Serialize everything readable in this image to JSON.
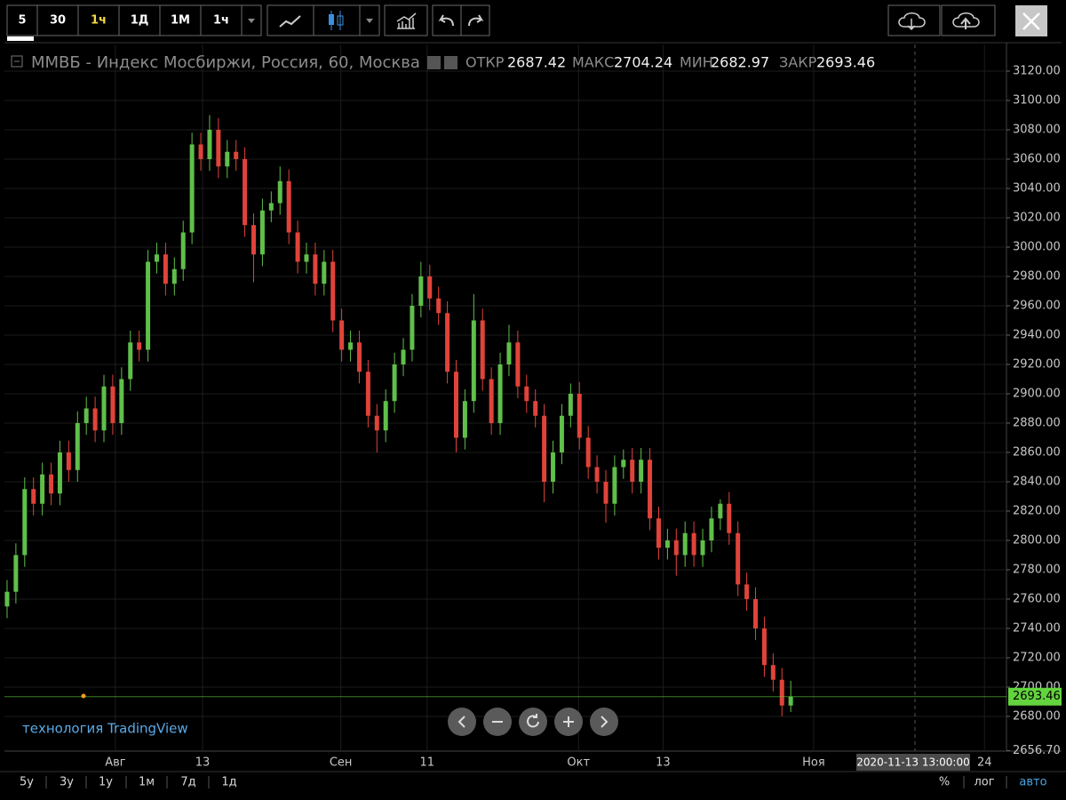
{
  "toolbar": {
    "intervals": [
      "5",
      "30",
      "1ч",
      "1Д",
      "1М",
      "1ч"
    ]
  },
  "chart_data": {
    "type": "candlestick",
    "title": "ММВБ - Индекс Мосбиржи, Россия, 60, Москва",
    "ohlc_labels": [
      "ОТКР",
      "МАКС",
      "МИН",
      "ЗАКР"
    ],
    "open": [
      2755,
      2765,
      2790,
      2835,
      2825,
      2845,
      2832,
      2860,
      2848,
      2880,
      2890,
      2875,
      2905,
      2880,
      2910,
      2935,
      2930,
      2990,
      2995,
      2975,
      2985,
      3010,
      3070,
      3060,
      3080,
      3055,
      3065,
      3060,
      3015,
      2995,
      3025,
      3030,
      3045,
      3010,
      2990,
      2995,
      2975,
      2990,
      2950,
      2930,
      2935,
      2915,
      2885,
      2875,
      2895,
      2920,
      2930,
      2960,
      2980,
      2965,
      2955,
      2915,
      2870,
      2895,
      2950,
      2910,
      2880,
      2920,
      2935,
      2905,
      2895,
      2885,
      2840,
      2860,
      2885,
      2900,
      2870,
      2850,
      2840,
      2825,
      2850,
      2855,
      2840,
      2855,
      2815,
      2795,
      2800,
      2790,
      2805,
      2790,
      2800,
      2815,
      2825,
      2805,
      2770,
      2760,
      2740,
      2715,
      2705,
      2687.42
    ],
    "high": [
      2773,
      2798,
      2843,
      2843,
      2853,
      2853,
      2868,
      2868,
      2888,
      2898,
      2898,
      2913,
      2913,
      2918,
      2943,
      2943,
      2998,
      3003,
      3003,
      2993,
      3018,
      3078,
      3078,
      3090,
      3088,
      3073,
      3073,
      3068,
      3023,
      3033,
      3038,
      3055,
      3053,
      3018,
      3003,
      3003,
      2998,
      2998,
      2958,
      2943,
      2943,
      2923,
      2893,
      2903,
      2928,
      2938,
      2968,
      2990,
      2988,
      2973,
      2963,
      2923,
      2903,
      2968,
      2958,
      2918,
      2928,
      2947,
      2943,
      2913,
      2903,
      2893,
      2868,
      2893,
      2907,
      2908,
      2878,
      2858,
      2848,
      2858,
      2862,
      2863,
      2863,
      2863,
      2823,
      2808,
      2808,
      2813,
      2813,
      2808,
      2823,
      2828,
      2833,
      2813,
      2778,
      2768,
      2748,
      2723,
      2713,
      2704.24
    ],
    "low": [
      2747,
      2757,
      2782,
      2817,
      2817,
      2824,
      2824,
      2840,
      2840,
      2872,
      2867,
      2867,
      2872,
      2872,
      2902,
      2922,
      2922,
      2982,
      2967,
      2967,
      2977,
      3002,
      3052,
      3052,
      3047,
      3047,
      3052,
      3007,
      2976,
      2987,
      3017,
      3022,
      3002,
      2982,
      2982,
      2967,
      2967,
      2942,
      2922,
      2922,
      2907,
      2877,
      2860,
      2867,
      2887,
      2912,
      2922,
      2952,
      2957,
      2947,
      2907,
      2860,
      2862,
      2887,
      2902,
      2872,
      2872,
      2912,
      2897,
      2887,
      2877,
      2826,
      2832,
      2852,
      2877,
      2862,
      2842,
      2832,
      2812,
      2817,
      2842,
      2832,
      2832,
      2807,
      2787,
      2787,
      2776,
      2782,
      2782,
      2782,
      2792,
      2807,
      2797,
      2762,
      2752,
      2732,
      2707,
      2697,
      2680,
      2682.97
    ],
    "close": [
      2765,
      2790,
      2835,
      2825,
      2845,
      2832,
      2860,
      2848,
      2880,
      2890,
      2875,
      2905,
      2880,
      2910,
      2935,
      2930,
      2990,
      2995,
      2975,
      2985,
      3010,
      3070,
      3060,
      3080,
      3055,
      3065,
      3060,
      3015,
      2995,
      3025,
      3030,
      3045,
      3010,
      2990,
      2995,
      2975,
      2990,
      2950,
      2930,
      2935,
      2915,
      2885,
      2875,
      2895,
      2920,
      2930,
      2960,
      2980,
      2965,
      2955,
      2915,
      2870,
      2895,
      2950,
      2910,
      2880,
      2920,
      2935,
      2905,
      2895,
      2885,
      2840,
      2860,
      2885,
      2900,
      2870,
      2850,
      2840,
      2825,
      2850,
      2855,
      2840,
      2855,
      2815,
      2795,
      2800,
      2790,
      2805,
      2790,
      2800,
      2815,
      2825,
      2805,
      2770,
      2760,
      2740,
      2715,
      2705,
      2687.42,
      2693.46
    ],
    "up_color": "#5fbf4a",
    "down_color": "#e0433a",
    "last_price_color": "#63d33e",
    "xlim": [
      -0.3,
      113.5
    ],
    "xticks": [
      {
        "value": 12.3,
        "label": "Авг"
      },
      {
        "value": 22.2,
        "label": "13"
      },
      {
        "value": 37.9,
        "label": "Сен"
      },
      {
        "value": 47.7,
        "label": "11"
      },
      {
        "value": 64.9,
        "label": "Окт"
      },
      {
        "value": 74.5,
        "label": "13"
      },
      {
        "value": 91.6,
        "label": "Ноя"
      },
      {
        "value": 111.0,
        "label": "24"
      }
    ],
    "ylim": [
      2656.7,
      3138
    ],
    "yticks": [
      {
        "value": 2656.7,
        "label": "2656.70"
      },
      {
        "value": 2680,
        "label": "2680.00"
      },
      {
        "value": 2700,
        "label": "2700.00"
      },
      {
        "value": 2720,
        "label": "2720.00"
      },
      {
        "value": 2740,
        "label": "2740.00"
      },
      {
        "value": 2760,
        "label": "2760.00"
      },
      {
        "value": 2780,
        "label": "2780.00"
      },
      {
        "value": 2800,
        "label": "2800.00"
      },
      {
        "value": 2820,
        "label": "2820.00"
      },
      {
        "value": 2840,
        "label": "2840.00"
      },
      {
        "value": 2860,
        "label": "2860.00"
      },
      {
        "value": 2880,
        "label": "2880.00"
      },
      {
        "value": 2900,
        "label": "2900.00"
      },
      {
        "value": 2920,
        "label": "2920.00"
      },
      {
        "value": 2940,
        "label": "2940.00"
      },
      {
        "value": 2960,
        "label": "2960.00"
      },
      {
        "value": 2980,
        "label": "2980.00"
      },
      {
        "value": 3000,
        "label": "3000.00"
      },
      {
        "value": 3020,
        "label": "3020.00"
      },
      {
        "value": 3040,
        "label": "3040.00"
      },
      {
        "value": 3060,
        "label": "3060.00"
      },
      {
        "value": 3080,
        "label": "3080.00"
      },
      {
        "value": 3100,
        "label": "3100.00"
      },
      {
        "value": 3120,
        "label": "3120.00"
      }
    ],
    "grid": true,
    "crosshair_label": "2020-11-13 13:00:00",
    "watermark": "технология TradingView"
  },
  "footer": {
    "ranges": [
      "5y",
      "3y",
      "1y",
      "1м",
      "7д",
      "1д"
    ],
    "scale_modes": [
      "%",
      "лог",
      "авто"
    ]
  }
}
